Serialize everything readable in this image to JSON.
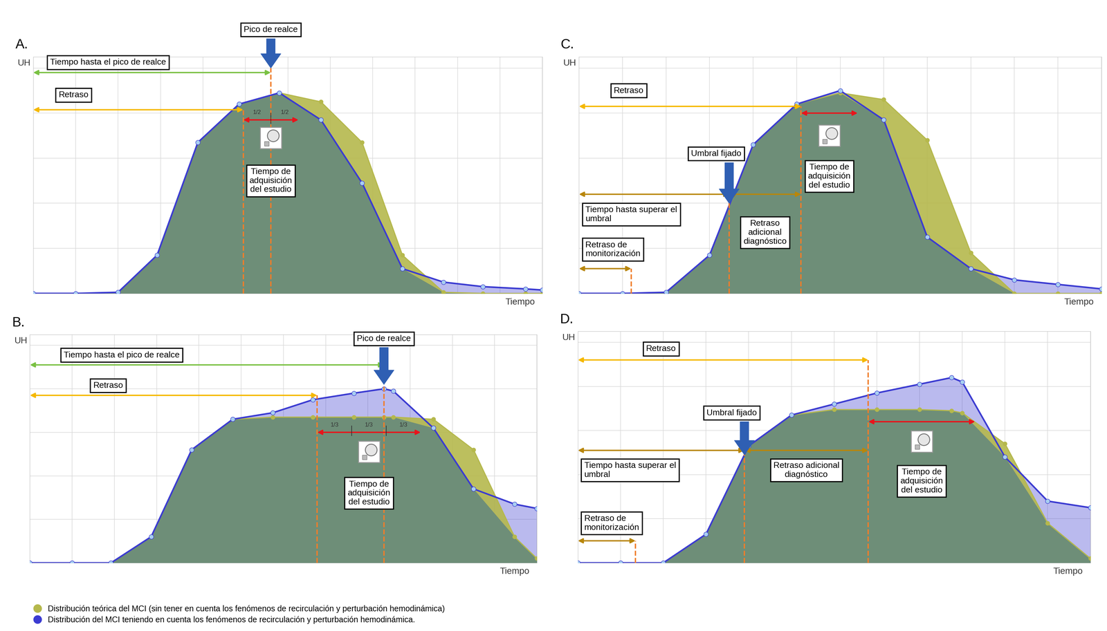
{
  "chart_data": [
    {
      "type": "line",
      "title": "A.",
      "ylabel": "UH",
      "xlabel": "Tiempo",
      "xlim": [
        0,
        12
      ],
      "ylim": [
        0,
        105
      ],
      "xticks": [
        0,
        1,
        2,
        3,
        4,
        5,
        6,
        7,
        8,
        9,
        10,
        11,
        12
      ],
      "yticks": [
        0,
        20,
        40,
        60,
        80,
        100
      ],
      "grid": true,
      "tick_labels": false,
      "legend": "lower left",
      "x": [
        0,
        1,
        2,
        2.92,
        3.88,
        4.85,
        5.8,
        6.78,
        7.75,
        8.7,
        9.67,
        10.6,
        11.6,
        12
      ],
      "series": [
        {
          "name": "Distribución teórica del MCI (sin tener en cuenta los fenómenos de recirculación y perturbación hemodinámica)",
          "color": "#b5b84c",
          "marker": "circle",
          "values": [
            0,
            0,
            0.5,
            17,
            67,
            84,
            89,
            85,
            67,
            17,
            0.5,
            0,
            0,
            0
          ]
        },
        {
          "name": "Distribución del MCI teniendo en cuenta los fenómenos de recirculación y perturbación hemodinámica.",
          "color": "#3b3bd1",
          "marker": "circle",
          "values": [
            0,
            0,
            0.5,
            17,
            67,
            84,
            89,
            77,
            49,
            11,
            5,
            3,
            2,
            1.5
          ]
        }
      ],
      "annotations": {
        "time_to_peak": {
          "label": "Tiempo hasta el pico de realce",
          "x": 5.6
        },
        "peak": {
          "label": "Pico de realce",
          "x": 5.6
        },
        "delay": {
          "label": "Retraso",
          "x": 4.95
        },
        "acquisition": {
          "label": "Tiempo de adquisición del estudio",
          "x": [
            4.95,
            6.25
          ],
          "divisions": [
            "1/2",
            "1/2"
          ]
        }
      }
    },
    {
      "type": "line",
      "title": "B.",
      "ylabel": "UH",
      "xlabel": "Tiempo",
      "xlim": [
        0,
        12
      ],
      "ylim": [
        0,
        105
      ],
      "xticks": [
        0,
        1,
        2,
        3,
        4,
        5,
        6,
        7,
        8,
        9,
        10,
        11,
        12
      ],
      "yticks": [
        0,
        20,
        40,
        60,
        80,
        100
      ],
      "grid": true,
      "tick_labels": false,
      "x": [
        0,
        1,
        1.92,
        2.87,
        3.83,
        4.8,
        5.75,
        6.7,
        7.67,
        8.38,
        8.6,
        9.55,
        10.5,
        11.47,
        12
      ],
      "series": [
        {
          "name": "Distribución teórica del MCI (sin tener en cuenta los fenómenos de recirculación y perturbación hemodinámica)",
          "color": "#b5b84c",
          "marker": "circle",
          "values": [
            0,
            0,
            0,
            12,
            52,
            66,
            67,
            67,
            67,
            67,
            67,
            66,
            52,
            12,
            2
          ]
        },
        {
          "name": "Distribución del MCI teniendo en cuenta los fenómenos de recirculación y perturbación hemodinámica.",
          "color": "#3b3bd1",
          "marker": "circle",
          "values": [
            0,
            0,
            0,
            12,
            52,
            66,
            69,
            75,
            78,
            80,
            79,
            62,
            34,
            27,
            25
          ]
        }
      ],
      "annotations": {
        "time_to_peak": {
          "label": "Tiempo hasta el pico de realce",
          "x": 8.38
        },
        "peak": {
          "label": "Pico de realce",
          "x": 8.38
        },
        "delay": {
          "label": "Retraso",
          "x": 6.8
        },
        "acquisition": {
          "label": "Tiempo de adquisición del estudio",
          "x": [
            6.8,
            9.25
          ],
          "divisions": [
            "1/3",
            "1/3",
            "1/3"
          ]
        }
      }
    },
    {
      "type": "line",
      "title": "C.",
      "ylabel": "UH",
      "xlabel": "Tiempo",
      "xlim": [
        0,
        12
      ],
      "ylim": [
        0,
        105
      ],
      "xticks": [
        0,
        1,
        2,
        3,
        4,
        5,
        6,
        7,
        8,
        9,
        10,
        11,
        12
      ],
      "yticks": [
        0,
        20,
        40,
        60,
        80,
        100
      ],
      "grid": true,
      "tick_labels": false,
      "x": [
        0,
        1,
        2,
        3,
        4,
        5,
        6,
        7,
        8,
        9,
        10,
        11,
        12
      ],
      "series": [
        {
          "name": "Distribución teórica del MCI (sin tener en cuenta los fenómenos de recirculación y perturbación hemodinámica)",
          "color": "#b5b84c",
          "marker": "circle",
          "values": [
            0,
            0,
            0.5,
            17,
            66,
            84,
            89,
            86,
            68,
            18,
            0,
            0,
            0
          ]
        },
        {
          "name": "Distribución del MCI teniendo en cuenta los fenómenos de recirculación y perturbación hemodinámica.",
          "color": "#3b3bd1",
          "marker": "circle",
          "values": [
            0,
            0,
            0.5,
            17,
            66,
            84,
            90,
            77,
            25,
            11,
            6,
            4,
            2
          ]
        }
      ],
      "annotations": {
        "delay": {
          "label": "Retraso",
          "x": 5.1
        },
        "threshold": {
          "label": "Umbral fijado",
          "x": 3.45,
          "y": 40
        },
        "time_to_threshold": {
          "label": "Tiempo hasta superar el umbral",
          "x": 3.45
        },
        "diagnostic_delay": {
          "label": "Retraso adicional diagnóstico",
          "x": [
            3.45,
            5.1
          ]
        },
        "monitoring_delay": {
          "label": "Retraso de monitorización",
          "x": 1.2
        },
        "acquisition": {
          "label": "Tiempo de adquisición del estudio",
          "x": [
            5.1,
            6.4
          ]
        }
      }
    },
    {
      "type": "line",
      "title": "D.",
      "ylabel": "UH",
      "xlabel": "Tiempo",
      "xlim": [
        0,
        12
      ],
      "ylim": [
        0,
        105
      ],
      "xticks": [
        0,
        1,
        2,
        3,
        4,
        5,
        6,
        7,
        8,
        9,
        10,
        11,
        12
      ],
      "yticks": [
        0,
        20,
        40,
        60,
        80,
        100
      ],
      "grid": true,
      "tick_labels": false,
      "x": [
        0,
        1,
        2,
        3,
        4,
        5,
        6,
        7,
        8,
        8.75,
        9,
        10,
        11,
        12
      ],
      "series": [
        {
          "name": "Distribución teórica del MCI (sin tener en cuenta los fenómenos de recirculación y perturbación hemodinámica)",
          "color": "#b5b84c",
          "marker": "circle",
          "values": [
            0,
            0,
            0,
            13,
            53,
            67,
            69.5,
            69.5,
            69.5,
            69,
            68,
            54,
            18,
            2
          ]
        },
        {
          "name": "Distribución del MCI teniendo en cuenta los fenómenos de recirculación y perturbación hemodinámica.",
          "color": "#3b3bd1",
          "marker": "circle",
          "values": [
            0,
            0,
            0,
            13,
            53,
            67,
            72,
            77,
            81,
            84,
            82,
            48,
            28,
            25
          ]
        }
      ],
      "annotations": {
        "delay": {
          "label": "Retraso",
          "x": 6.8
        },
        "threshold": {
          "label": "Umbral fijado",
          "x": 3.9,
          "y": 49
        },
        "time_to_threshold": {
          "label": "Tiempo hasta superar el umbral",
          "x": 3.9
        },
        "diagnostic_delay": {
          "label": "Retraso adicional diagnóstico",
          "x": [
            3.9,
            6.8
          ]
        },
        "monitoring_delay": {
          "label": "Retraso de monitorización",
          "x": 1.35
        },
        "acquisition": {
          "label": "Tiempo de adquisición del estudio",
          "x": [
            6.8,
            9.3
          ]
        }
      }
    }
  ]
}
